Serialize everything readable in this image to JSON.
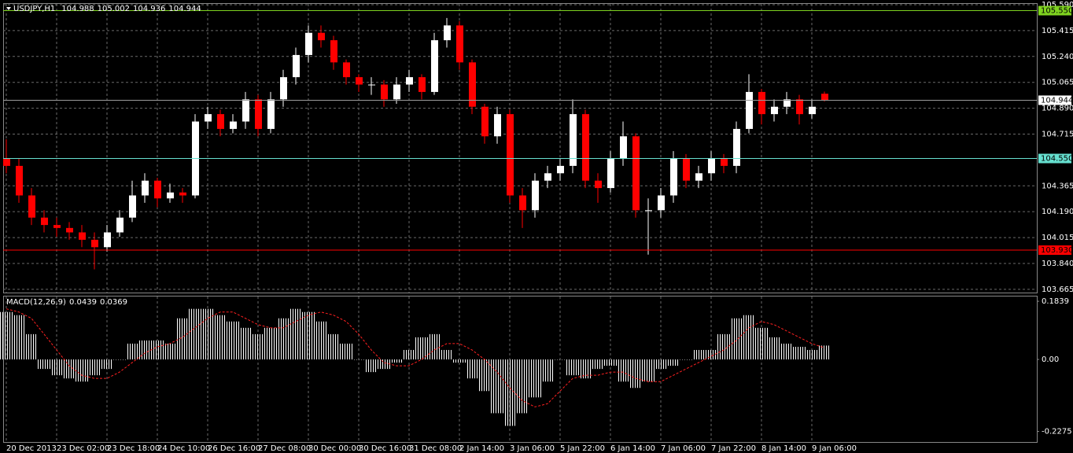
{
  "chart_data": [
    {
      "type": "candlestick",
      "title": "USDJPY,H1",
      "categories": [
        "20 Dec 2013",
        null,
        null,
        null,
        "23 Dec 02:00",
        null,
        null,
        null,
        "23 Dec 18:00",
        null,
        null,
        null,
        "24 Dec 10:00",
        null,
        null,
        null,
        "26 Dec 16:00",
        null,
        null,
        null,
        "27 Dec 08:00",
        null,
        null,
        null,
        "30 Dec 00:00",
        null,
        null,
        null,
        "30 Dec 16:00",
        null,
        null,
        null,
        "31 Dec 08:00",
        null,
        null,
        null,
        "2 Jan 14:00",
        null,
        null,
        null,
        "3 Jan 06:00",
        null,
        null,
        null,
        "5 Jan 22:00",
        null,
        null,
        null,
        "6 Jan 14:00",
        null,
        null,
        null,
        "7 Jan 06:00",
        null,
        null,
        null,
        "7 Jan 22:00",
        null,
        null,
        null,
        "8 Jan 14:00",
        null,
        null,
        null,
        "9 Jan 06:00",
        null
      ],
      "open": [
        104.55,
        104.5,
        104.3,
        104.15,
        104.1,
        104.08,
        104.05,
        104.0,
        103.95,
        104.05,
        104.15,
        104.3,
        104.4,
        104.28,
        104.32,
        104.3,
        104.8,
        104.85,
        104.75,
        104.8,
        104.95,
        104.75,
        104.95,
        105.1,
        105.25,
        105.4,
        105.35,
        105.2,
        105.1,
        105.05,
        105.05,
        104.95,
        105.05,
        105.1,
        105.0,
        105.35,
        105.45,
        105.2,
        104.9,
        104.7,
        104.85,
        104.3,
        104.2,
        104.4,
        104.45,
        104.5,
        104.85,
        104.4,
        104.35,
        104.55,
        104.7,
        104.2,
        104.2,
        104.3,
        104.55,
        104.4,
        104.45,
        104.55,
        104.5,
        104.75,
        105.0,
        104.85,
        104.9,
        104.95,
        104.85,
        104.988
      ],
      "high": [
        104.68,
        104.55,
        104.35,
        104.2,
        104.15,
        104.12,
        104.1,
        104.05,
        104.1,
        104.2,
        104.4,
        104.45,
        104.42,
        104.38,
        104.35,
        104.85,
        104.9,
        104.88,
        104.85,
        105.0,
        104.98,
        105.0,
        105.15,
        105.3,
        105.45,
        105.45,
        105.38,
        105.22,
        105.12,
        105.1,
        105.08,
        105.1,
        105.15,
        105.12,
        105.4,
        105.5,
        105.48,
        105.22,
        104.92,
        104.9,
        104.88,
        104.35,
        104.45,
        104.5,
        104.55,
        104.95,
        104.88,
        104.45,
        104.6,
        104.8,
        104.72,
        104.28,
        104.35,
        104.6,
        104.58,
        104.5,
        104.6,
        104.58,
        104.8,
        105.12,
        105.02,
        104.95,
        105.0,
        104.98,
        104.95,
        105.002
      ],
      "low": [
        104.45,
        104.25,
        104.1,
        104.05,
        104.02,
        104.0,
        103.95,
        103.8,
        103.92,
        104.02,
        104.12,
        104.25,
        104.22,
        104.25,
        104.25,
        104.28,
        104.75,
        104.7,
        104.72,
        104.75,
        104.7,
        104.72,
        104.9,
        105.05,
        105.2,
        105.3,
        105.15,
        105.05,
        105.0,
        104.98,
        104.9,
        104.92,
        105.0,
        104.95,
        104.98,
        105.3,
        105.15,
        104.85,
        104.65,
        104.65,
        104.25,
        104.08,
        104.15,
        104.35,
        104.4,
        104.45,
        104.35,
        104.25,
        104.32,
        104.5,
        104.15,
        103.9,
        104.15,
        104.25,
        104.35,
        104.35,
        104.4,
        104.45,
        104.45,
        104.72,
        104.78,
        104.8,
        104.85,
        104.78,
        104.82,
        104.936
      ],
      "close": [
        104.5,
        104.3,
        104.15,
        104.1,
        104.08,
        104.05,
        104.0,
        103.95,
        104.05,
        104.15,
        104.3,
        104.4,
        104.28,
        104.32,
        104.3,
        104.8,
        104.85,
        104.75,
        104.8,
        104.95,
        104.75,
        104.95,
        105.1,
        105.25,
        105.4,
        105.35,
        105.2,
        105.1,
        105.05,
        105.05,
        104.95,
        105.05,
        105.1,
        105.0,
        105.35,
        105.45,
        105.2,
        104.9,
        104.7,
        104.85,
        104.3,
        104.2,
        104.4,
        104.45,
        104.5,
        104.85,
        104.4,
        104.35,
        104.55,
        104.7,
        104.2,
        104.2,
        104.3,
        104.55,
        104.4,
        104.45,
        104.55,
        104.5,
        104.75,
        105.0,
        104.85,
        104.9,
        104.95,
        104.85,
        104.9,
        104.944
      ],
      "up_color": "#ffffff",
      "down_color": "#ff0000",
      "ylim": [
        103.643,
        105.622
      ],
      "yticks": [
        {
          "value": 105.59,
          "label": "105.590"
        },
        105.415,
        {
          "value": 105.24,
          "label": "105.240"
        },
        105.065,
        {
          "value": 104.89,
          "label": "104.890"
        },
        104.715,
        104.365,
        {
          "value": 104.19,
          "label": "104.190"
        },
        104.015,
        {
          "value": 103.84,
          "label": "103.840"
        },
        103.665
      ],
      "levels": [
        {
          "value": 105.55,
          "label": "105.550",
          "color": "#7fd320"
        },
        {
          "value": 104.55,
          "label": "104.550",
          "color": "#66e0d0"
        },
        {
          "value": 103.93,
          "label": "103.930",
          "color": "#ff0000"
        }
      ],
      "grid": true
    },
    {
      "type": "macd",
      "title": "MACD(12,26,9)",
      "histogram": {
        "color": "#ffffff",
        "values": [
          0.15,
          0.14,
          0.08,
          -0.03,
          -0.05,
          -0.06,
          -0.07,
          -0.05,
          -0.03,
          0.0,
          0.05,
          0.06,
          0.06,
          0.05,
          0.13,
          0.16,
          0.16,
          0.14,
          0.12,
          0.1,
          0.08,
          0.1,
          0.13,
          0.16,
          0.15,
          0.12,
          0.08,
          0.05,
          0.0,
          -0.04,
          -0.03,
          -0.01,
          0.03,
          0.07,
          0.08,
          0.03,
          -0.01,
          -0.06,
          -0.1,
          -0.17,
          -0.21,
          -0.17,
          -0.12,
          -0.07,
          0.0,
          -0.05,
          -0.06,
          -0.03,
          -0.02,
          -0.07,
          -0.09,
          -0.07,
          -0.03,
          -0.02,
          0.0,
          0.03,
          0.03,
          0.08,
          0.13,
          0.14,
          0.1,
          0.07,
          0.05,
          0.04,
          0.03,
          0.0439
        ]
      },
      "signal": {
        "color": "#ff2020",
        "values": [
          0.16,
          0.15,
          0.13,
          0.08,
          0.03,
          -0.02,
          -0.05,
          -0.06,
          -0.06,
          -0.04,
          -0.01,
          0.02,
          0.04,
          0.05,
          0.07,
          0.1,
          0.13,
          0.15,
          0.15,
          0.13,
          0.11,
          0.1,
          0.1,
          0.12,
          0.14,
          0.15,
          0.14,
          0.12,
          0.08,
          0.03,
          -0.01,
          -0.02,
          -0.02,
          0.0,
          0.03,
          0.05,
          0.05,
          0.03,
          0.0,
          -0.04,
          -0.09,
          -0.13,
          -0.15,
          -0.14,
          -0.1,
          -0.06,
          -0.05,
          -0.05,
          -0.04,
          -0.04,
          -0.06,
          -0.07,
          -0.07,
          -0.05,
          -0.03,
          -0.01,
          0.01,
          0.03,
          0.06,
          0.1,
          0.12,
          0.11,
          0.09,
          0.07,
          0.05,
          0.0369
        ]
      },
      "ylim": [
        -0.261,
        0.204
      ],
      "yticks": [
        0.1839,
        {
          "value": 0,
          "label": "0.00"
        },
        -0.2275
      ]
    }
  ]
}
